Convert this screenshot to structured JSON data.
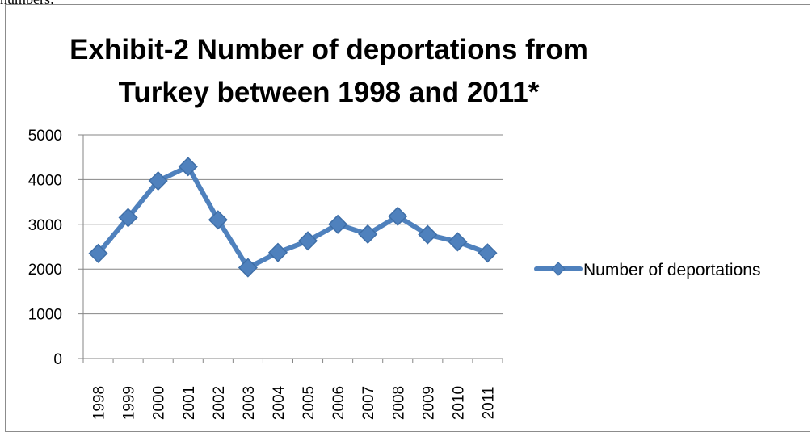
{
  "page": {
    "top_text": "numbers:"
  },
  "chart_data": {
    "type": "line",
    "title_lines": [
      "Exhibit-2 Number of deportations from",
      "Turkey between 1998 and 2011*"
    ],
    "xlabel": "",
    "ylabel": "",
    "categories": [
      "1998",
      "1999",
      "2000",
      "2001",
      "2002",
      "2003",
      "2004",
      "2005",
      "2006",
      "2007",
      "2008",
      "2009",
      "2010",
      "2011"
    ],
    "series": [
      {
        "name": "Number of deportations",
        "values": [
          2350,
          3150,
          3970,
          4290,
          3100,
          2030,
          2370,
          2630,
          3000,
          2780,
          3180,
          2770,
          2610,
          2360
        ]
      }
    ],
    "ylim": [
      0,
      5000
    ],
    "yticks": [
      0,
      1000,
      2000,
      3000,
      4000,
      5000
    ],
    "grid": "horizontal",
    "legend_position": "right",
    "colors": {
      "series": "#4f81bd",
      "marker_stroke": "#3f6fa8",
      "grid": "#868686"
    }
  }
}
